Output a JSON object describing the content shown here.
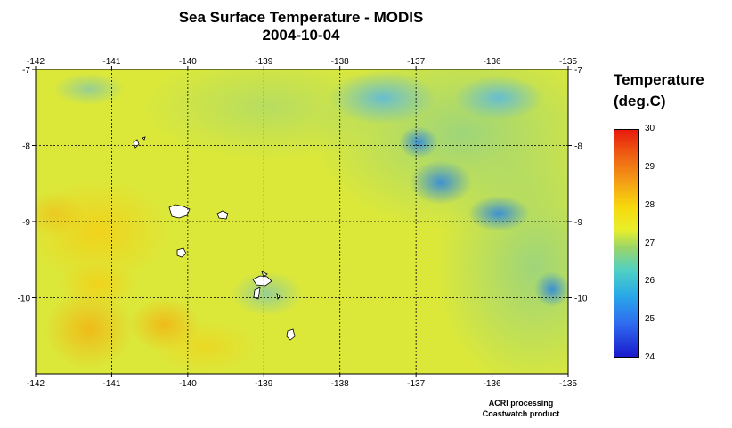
{
  "title": {
    "line1": "Sea Surface Temperature - MODIS",
    "line2": "2004-10-04"
  },
  "map": {
    "lon_range": [
      -142,
      -135
    ],
    "lat_range": [
      -11,
      -7
    ],
    "lon_ticks": [
      "-142",
      "-141",
      "-140",
      "-139",
      "-138",
      "-137",
      "-136",
      "-135"
    ],
    "lat_ticks": [
      "-7",
      "-8",
      "-9",
      "-10"
    ],
    "gridlines": true,
    "land_color": "#ffffff",
    "background_color": "#dbe83a"
  },
  "legend": {
    "title_line1": "Temperature",
    "title_line2": "(deg.C)",
    "min": 24,
    "max": 30,
    "labels": [
      "30",
      "29",
      "28",
      "27",
      "26",
      "25",
      "24"
    ],
    "colors": [
      "#1a1acc",
      "#2f6df0",
      "#29a9e8",
      "#4fd0c4",
      "#9ad56a",
      "#e8ef2a",
      "#f7d90d",
      "#f49a16",
      "#ee5a12",
      "#e81a0c"
    ]
  },
  "credit": {
    "line1": "ACRI processing",
    "line2": "Coastwatch product"
  }
}
